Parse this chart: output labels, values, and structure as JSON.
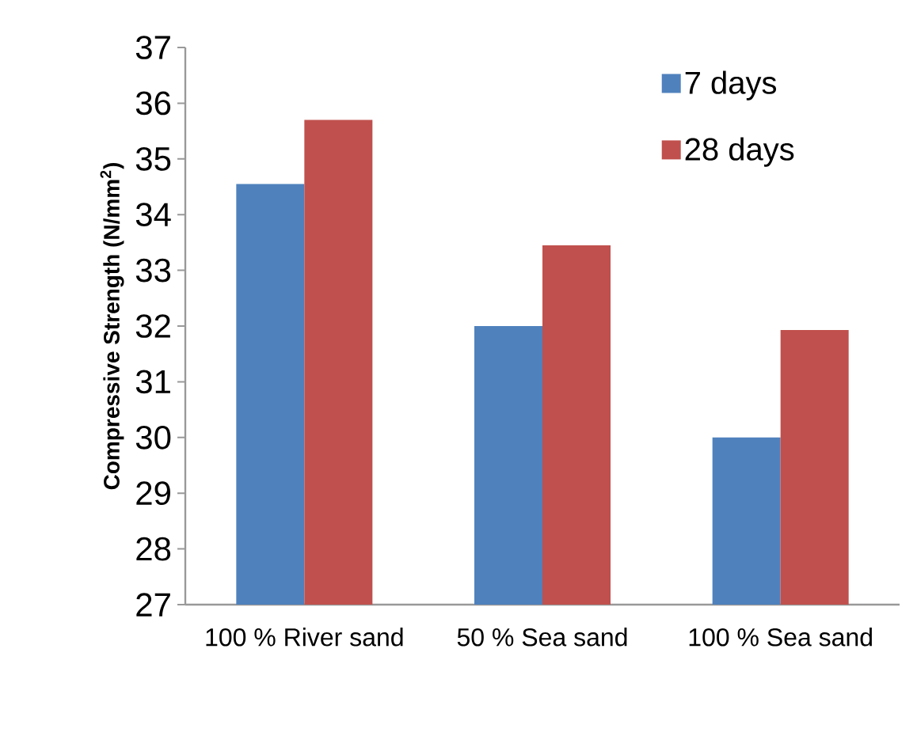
{
  "chart_data": {
    "type": "bar",
    "ylabel": "Compressive Strength (N/mm$^{2}$)",
    "categories": [
      "100 % River sand",
      "50 % Sea sand",
      "100 % Sea sand"
    ],
    "series": [
      {
        "name": "7 days",
        "color": "#4f81bd",
        "values": [
          34.55,
          32.0,
          30.0
        ]
      },
      {
        "name": "28 days",
        "color": "#c0504d",
        "values": [
          35.7,
          33.45,
          31.93
        ]
      }
    ],
    "ylim": [
      27,
      37
    ],
    "yticks": [
      27,
      28,
      29,
      30,
      31,
      32,
      33,
      34,
      35,
      36,
      37
    ],
    "legend": "top right",
    "grid": false
  }
}
